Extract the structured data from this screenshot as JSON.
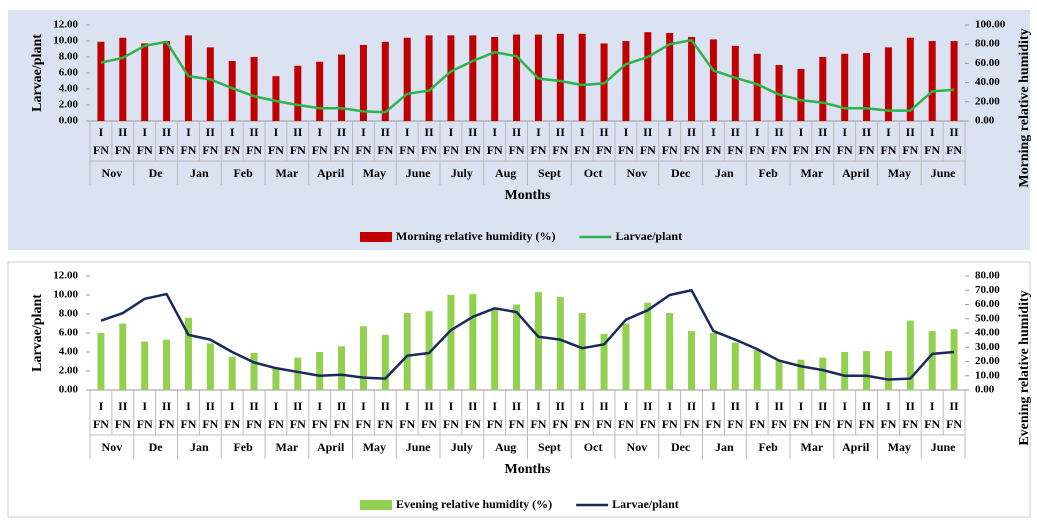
{
  "chart_data": [
    {
      "type": "combo",
      "y_label": "Larvae/plant",
      "y2_label": "Morning relative humidity",
      "x_label": "Months",
      "categories": [
        "I",
        "II",
        "I",
        "II",
        "I",
        "II",
        "I",
        "II",
        "I",
        "II",
        "I",
        "II",
        "I",
        "II",
        "I",
        "II",
        "I",
        "II",
        "I",
        "II",
        "I",
        "II",
        "I",
        "II",
        "I",
        "II",
        "I",
        "II",
        "I",
        "II",
        "I",
        "II",
        "I",
        "II",
        "I",
        "II",
        "I",
        "II",
        "I",
        "II"
      ],
      "category_sublabel": "FN",
      "groups": [
        "Nov",
        "De",
        "Jan",
        "Feb",
        "Mar",
        "April",
        "May",
        "June",
        "July",
        "Aug",
        "Sept",
        "Oct",
        "Nov",
        "Dec",
        "Jan",
        "Feb",
        "Mar",
        "April",
        "May",
        "June"
      ],
      "ylim": [
        0,
        12
      ],
      "yticks": [
        {
          "value": 0,
          "label": "0.00"
        },
        {
          "value": 2,
          "label": "2.00"
        },
        {
          "value": 4,
          "label": "4.00"
        },
        {
          "value": 6,
          "label": "6.00"
        },
        {
          "value": 8,
          "label": "8.00"
        },
        {
          "value": 10,
          "label": "10.00"
        },
        {
          "value": 12,
          "label": "12.00"
        }
      ],
      "y2lim": [
        0,
        100
      ],
      "y2ticks": [
        {
          "value": 0,
          "label": "0.00"
        },
        {
          "value": 20,
          "label": "20.00"
        },
        {
          "value": 40,
          "label": "40.00"
        },
        {
          "value": 60,
          "label": "60.00"
        },
        {
          "value": 80,
          "label": "80.00"
        },
        {
          "value": 100,
          "label": "100.00"
        }
      ],
      "background": "#dbe2f1",
      "series": [
        {
          "name": "Morning relative humidity (%)",
          "type": "bar",
          "axis": "y2",
          "color": "#c00000",
          "values": [
            82.5,
            86.7,
            80.8,
            83.3,
            89.2,
            76.7,
            62.5,
            66.7,
            46.7,
            57.5,
            61.7,
            69.2,
            79.2,
            82.5,
            86.7,
            89.2,
            89.2,
            89.2,
            87.5,
            90,
            90,
            90.8,
            90.8,
            80.8,
            83.3,
            92.5,
            91.7,
            87.5,
            85,
            78.3,
            70,
            58.3,
            54.2,
            66.7,
            70,
            70.8,
            76.7,
            86.7,
            83.3,
            83.3
          ]
        },
        {
          "name": "Larvae/plant",
          "type": "line",
          "color": "#2db34a",
          "values": [
            7.3,
            7.9,
            9.4,
            9.9,
            5.6,
            5.2,
            4.1,
            3.1,
            2.5,
            2.0,
            1.6,
            1.6,
            1.2,
            1.1,
            3.4,
            3.8,
            6.2,
            7.5,
            8.6,
            8.1,
            5.3,
            5.0,
            4.5,
            4.7,
            7.1,
            8.0,
            9.6,
            10.1,
            6.3,
            5.4,
            4.6,
            3.3,
            2.6,
            2.3,
            1.6,
            1.6,
            1.3,
            1.3,
            3.7,
            3.9
          ]
        }
      ]
    },
    {
      "type": "combo",
      "y_label": "Larvae/plant",
      "y2_label": "Evening relative humidity",
      "x_label": "Months",
      "categories": [
        "I",
        "II",
        "I",
        "II",
        "I",
        "II",
        "I",
        "II",
        "I",
        "II",
        "I",
        "II",
        "I",
        "II",
        "I",
        "II",
        "I",
        "II",
        "I",
        "II",
        "I",
        "II",
        "I",
        "II",
        "I",
        "II",
        "I",
        "II",
        "I",
        "II",
        "I",
        "II",
        "I",
        "II",
        "I",
        "II",
        "I",
        "II",
        "I",
        "II"
      ],
      "category_sublabel": "FN",
      "groups": [
        "Nov",
        "De",
        "Jan",
        "Feb",
        "Mar",
        "April",
        "May",
        "June",
        "July",
        "Aug",
        "Sept",
        "Oct",
        "Nov",
        "Dec",
        "Jan",
        "Feb",
        "Mar",
        "April",
        "May",
        "June"
      ],
      "ylim": [
        0,
        12
      ],
      "yticks": [
        {
          "value": 0,
          "label": "0.00"
        },
        {
          "value": 2,
          "label": "2.00"
        },
        {
          "value": 4,
          "label": "4.00"
        },
        {
          "value": 6,
          "label": "6.00"
        },
        {
          "value": 8,
          "label": "8.00"
        },
        {
          "value": 10,
          "label": "10.00"
        },
        {
          "value": 12,
          "label": "12.00"
        }
      ],
      "y2lim": [
        0,
        80
      ],
      "y2ticks": [
        {
          "value": 0,
          "label": "0.00"
        },
        {
          "value": 10,
          "label": "10.00"
        },
        {
          "value": 20,
          "label": "20.00"
        },
        {
          "value": 30,
          "label": "30.00"
        },
        {
          "value": 40,
          "label": "40.00"
        },
        {
          "value": 50,
          "label": "50.00"
        },
        {
          "value": 60,
          "label": "60.00"
        },
        {
          "value": 70,
          "label": "70.00"
        },
        {
          "value": 80,
          "label": "80.00"
        }
      ],
      "background": "#ffffff",
      "series": [
        {
          "name": "Evening relative humidity (%)",
          "type": "bar",
          "axis": "y2",
          "color": "#92d050",
          "values": [
            40,
            46.7,
            34,
            35.3,
            50.7,
            32.7,
            23.3,
            26,
            15.3,
            22.7,
            26.7,
            30.7,
            44.7,
            38.7,
            54,
            55.3,
            66.7,
            67.3,
            56.7,
            60,
            68.7,
            65.3,
            54,
            39.3,
            46.7,
            61.3,
            54,
            41.3,
            40,
            33.3,
            28,
            20.7,
            21.3,
            22.7,
            26.7,
            27.3,
            27.3,
            48.7,
            41.3,
            42.7
          ]
        },
        {
          "name": "Larvae/plant",
          "type": "line",
          "color": "#1b2a5e",
          "values": [
            7.3,
            8.1,
            9.6,
            10.1,
            5.8,
            5.3,
            4.0,
            2.9,
            2.3,
            1.9,
            1.5,
            1.6,
            1.3,
            1.2,
            3.6,
            3.9,
            6.3,
            7.7,
            8.6,
            8.2,
            5.6,
            5.3,
            4.4,
            4.8,
            7.4,
            8.4,
            10.0,
            10.5,
            6.2,
            5.3,
            4.3,
            3.1,
            2.5,
            2.1,
            1.5,
            1.5,
            1.1,
            1.2,
            3.8,
            4.0
          ]
        }
      ]
    }
  ]
}
